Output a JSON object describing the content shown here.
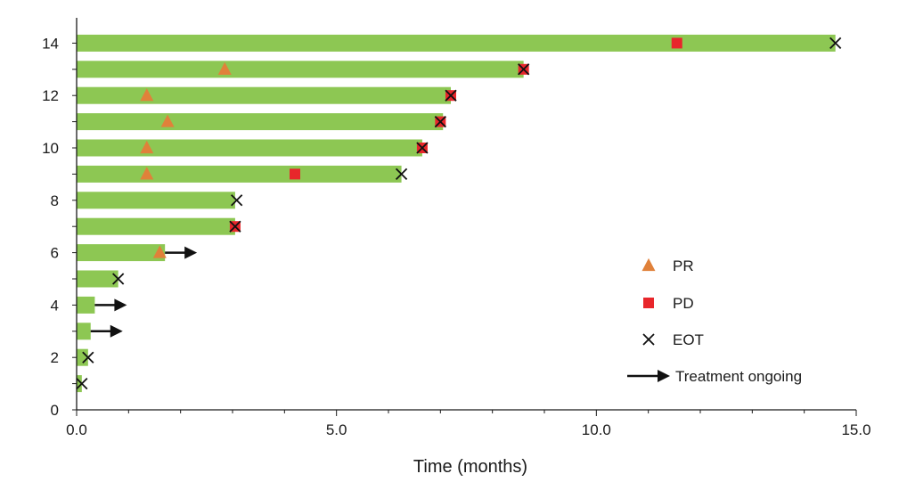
{
  "chart_data": {
    "type": "bar",
    "orientation": "horizontal",
    "title": "",
    "xlabel": "Time (months)",
    "ylabel": "",
    "xlim": [
      0,
      15
    ],
    "ylim": [
      0,
      14.5
    ],
    "x_ticks": [
      "0.0",
      "5.0",
      "10.0",
      "15.0"
    ],
    "x_tick_values": [
      0,
      5,
      10,
      15
    ],
    "x_minor_step": 1,
    "y_ticks": [
      "0",
      "2",
      "4",
      "6",
      "8",
      "10",
      "12",
      "14"
    ],
    "y_tick_values": [
      0,
      2,
      4,
      6,
      8,
      10,
      12,
      14
    ],
    "grid": false,
    "legend_position": "right",
    "colors": {
      "bar": "#8dc753",
      "pr": "#e0813a",
      "pd": "#e8262b",
      "eot": "#111111",
      "arrow": "#111111",
      "axis": "#1a1a1a"
    },
    "patients": [
      {
        "id": 1,
        "duration": 0.1,
        "pr": null,
        "pd": null,
        "eot": 0.1,
        "ongoing": false
      },
      {
        "id": 2,
        "duration": 0.22,
        "pr": null,
        "pd": null,
        "eot": 0.22,
        "ongoing": false
      },
      {
        "id": 3,
        "duration": 0.27,
        "pr": null,
        "pd": null,
        "eot": null,
        "ongoing": true
      },
      {
        "id": 4,
        "duration": 0.35,
        "pr": null,
        "pd": null,
        "eot": null,
        "ongoing": true
      },
      {
        "id": 5,
        "duration": 0.8,
        "pr": null,
        "pd": null,
        "eot": 0.8,
        "ongoing": false
      },
      {
        "id": 6,
        "duration": 1.7,
        "pr": 1.6,
        "pd": null,
        "eot": null,
        "ongoing": true
      },
      {
        "id": 7,
        "duration": 3.05,
        "pr": null,
        "pd": 3.05,
        "eot": 3.05,
        "ongoing": false
      },
      {
        "id": 8,
        "duration": 3.05,
        "pr": null,
        "pd": null,
        "eot": 3.08,
        "ongoing": false
      },
      {
        "id": 9,
        "duration": 6.25,
        "pr": 1.35,
        "pd": 4.2,
        "eot": 6.25,
        "ongoing": false
      },
      {
        "id": 10,
        "duration": 6.65,
        "pr": 1.35,
        "pd": 6.65,
        "eot": 6.65,
        "ongoing": false
      },
      {
        "id": 11,
        "duration": 7.05,
        "pr": 1.75,
        "pd": 7.0,
        "eot": 7.0,
        "ongoing": false
      },
      {
        "id": 12,
        "duration": 7.2,
        "pr": 1.35,
        "pd": 7.2,
        "eot": 7.2,
        "ongoing": false
      },
      {
        "id": 13,
        "duration": 8.6,
        "pr": 2.85,
        "pd": 8.6,
        "eot": 8.6,
        "ongoing": false
      },
      {
        "id": 14,
        "duration": 14.6,
        "pr": null,
        "pd": 11.55,
        "eot": 14.6,
        "ongoing": false
      }
    ],
    "legend": [
      {
        "key": "pr",
        "label": "PR"
      },
      {
        "key": "pd",
        "label": "PD"
      },
      {
        "key": "eot",
        "label": "EOT"
      },
      {
        "key": "ongoing",
        "label": "Treatment ongoing"
      }
    ]
  }
}
